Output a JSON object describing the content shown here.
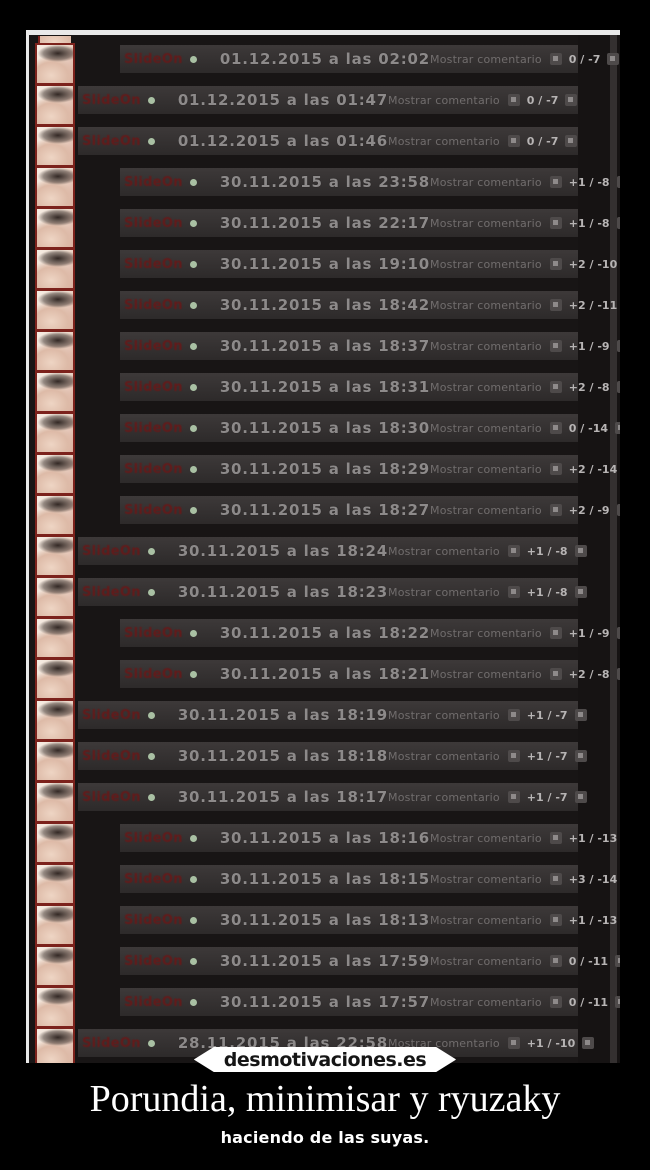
{
  "site": {
    "watermark": "desmotivaciones.es"
  },
  "caption": {
    "title": "Porundia, minimisar y ryuzaky",
    "subtitle": "haciendo de las suyas."
  },
  "panel": {
    "username": "SlideOn",
    "show_comment_label": "Mostrar comentario",
    "rows": [
      {
        "date": "01.12.2015 a las 02:02",
        "votes": "0 / -7",
        "indent": true
      },
      {
        "date": "01.12.2015 a las 01:47",
        "votes": "0 / -7",
        "indent": false
      },
      {
        "date": "01.12.2015 a las 01:46",
        "votes": "0 / -7",
        "indent": false
      },
      {
        "date": "30.11.2015 a las 23:58",
        "votes": "+1 / -8",
        "indent": true
      },
      {
        "date": "30.11.2015 a las 22:17",
        "votes": "+1 / -8",
        "indent": true
      },
      {
        "date": "30.11.2015 a las 19:10",
        "votes": "+2 / -10",
        "indent": true
      },
      {
        "date": "30.11.2015 a las 18:42",
        "votes": "+2 / -11",
        "indent": true
      },
      {
        "date": "30.11.2015 a las 18:37",
        "votes": "+1 / -9",
        "indent": true
      },
      {
        "date": "30.11.2015 a las 18:31",
        "votes": "+2 / -8",
        "indent": true
      },
      {
        "date": "30.11.2015 a las 18:30",
        "votes": "0 / -14",
        "indent": true
      },
      {
        "date": "30.11.2015 a las 18:29",
        "votes": "+2 / -14",
        "indent": true
      },
      {
        "date": "30.11.2015 a las 18:27",
        "votes": "+2 / -9",
        "indent": true
      },
      {
        "date": "30.11.2015 a las 18:24",
        "votes": "+1 / -8",
        "indent": false
      },
      {
        "date": "30.11.2015 a las 18:23",
        "votes": "+1 / -8",
        "indent": false
      },
      {
        "date": "30.11.2015 a las 18:22",
        "votes": "+1 / -9",
        "indent": true
      },
      {
        "date": "30.11.2015 a las 18:21",
        "votes": "+2 / -8",
        "indent": true
      },
      {
        "date": "30.11.2015 a las 18:19",
        "votes": "+1 / -7",
        "indent": false
      },
      {
        "date": "30.11.2015 a las 18:18",
        "votes": "+1 / -7",
        "indent": false
      },
      {
        "date": "30.11.2015 a las 18:17",
        "votes": "+1 / -7",
        "indent": false
      },
      {
        "date": "30.11.2015 a las 18:16",
        "votes": "+1 / -13",
        "indent": true
      },
      {
        "date": "30.11.2015 a las 18:15",
        "votes": "+3 / -14",
        "indent": true
      },
      {
        "date": "30.11.2015 a las 18:13",
        "votes": "+1 / -13",
        "indent": true
      },
      {
        "date": "30.11.2015 a las 17:59",
        "votes": "0 / -11",
        "indent": true
      },
      {
        "date": "30.11.2015 a las 17:57",
        "votes": "0 / -11",
        "indent": true
      },
      {
        "date": "28.11.2015 a las 22:58",
        "votes": "+1 / -10",
        "indent": false
      }
    ]
  },
  "colors": {
    "username_red": "#641a1a",
    "avatar_border": "#7c221c",
    "online_dot_green": "#a9c0a3",
    "date_gray": "#8d8a8a",
    "bar_gray": "#332f2f",
    "watermark_bg": "#ffffff"
  }
}
